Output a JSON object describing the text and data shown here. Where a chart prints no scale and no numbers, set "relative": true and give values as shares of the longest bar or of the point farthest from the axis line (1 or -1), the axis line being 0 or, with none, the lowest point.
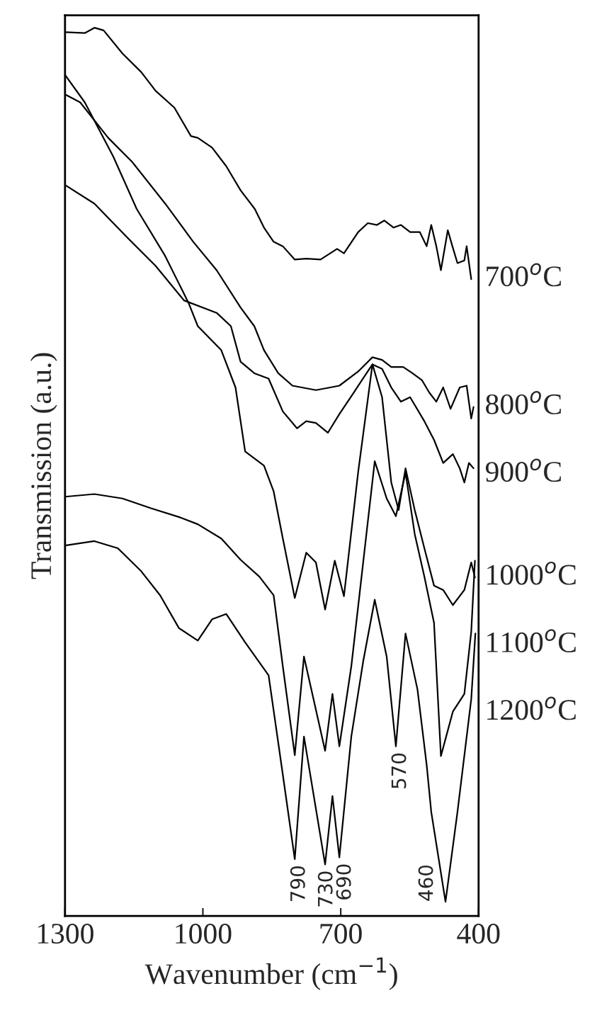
{
  "chart_data": {
    "type": "line",
    "relative": true,
    "xlabel": "Wavenumber (cm$^{−1}$)",
    "ylabel": "Transmission (a.u.)",
    "xlim": [
      1300,
      400
    ],
    "xticks": [
      1300,
      1000,
      700,
      400
    ],
    "tick_labels": "x",
    "grid": false,
    "legend": false,
    "marker": "none",
    "line_style": "solid",
    "series": [
      {
        "name": "700$^{o}$C",
        "color": "#000000",
        "x": [
          1300,
          1257,
          1236,
          1216,
          1175,
          1134,
          1103,
          1062,
          1026,
          1011,
          980,
          949,
          918,
          887,
          867,
          846,
          826,
          800,
          775,
          744,
          723,
          708,
          693,
          662,
          641,
          621,
          605,
          585,
          569,
          549,
          528,
          513,
          503,
          492,
          482,
          467,
          457,
          446,
          431,
          426,
          416
        ],
        "values": [
          0.995,
          0.994,
          1,
          0.997,
          0.971,
          0.95,
          0.929,
          0.91,
          0.878,
          0.876,
          0.865,
          0.844,
          0.817,
          0.796,
          0.775,
          0.759,
          0.754,
          0.739,
          0.74,
          0.739,
          0.746,
          0.751,
          0.746,
          0.77,
          0.78,
          0.778,
          0.783,
          0.775,
          0.778,
          0.77,
          0.77,
          0.754,
          0.778,
          0.754,
          0.727,
          0.772,
          0.754,
          0.735,
          0.738,
          0.754,
          0.717
        ]
      },
      {
        "name": "800$^{o}$C",
        "color": "#000000",
        "x": [
          1300,
          1267,
          1206,
          1154,
          1082,
          1021,
          970,
          918,
          888,
          867,
          836,
          805,
          754,
          723,
          703,
          662,
          631,
          610,
          590,
          564,
          544,
          523,
          507,
          492,
          477,
          461,
          441,
          426,
          416,
          411
        ],
        "values": [
          0.925,
          0.916,
          0.876,
          0.849,
          0.802,
          0.759,
          0.727,
          0.685,
          0.664,
          0.637,
          0.611,
          0.597,
          0.592,
          0.595,
          0.597,
          0.613,
          0.629,
          0.626,
          0.618,
          0.618,
          0.611,
          0.603,
          0.589,
          0.579,
          0.595,
          0.571,
          0.595,
          0.597,
          0.56,
          0.573
        ]
      },
      {
        "name": "900$^{o}$C",
        "color": "#000000",
        "x": [
          1300,
          1236,
          1165,
          1103,
          1041,
          970,
          939,
          918,
          888,
          857,
          826,
          795,
          775,
          754,
          728,
          703,
          672,
          631,
          610,
          590,
          569,
          549,
          518,
          497,
          477,
          456,
          441,
          431,
          421,
          411
        ],
        "values": [
          0.823,
          0.802,
          0.764,
          0.732,
          0.693,
          0.679,
          0.664,
          0.624,
          0.611,
          0.605,
          0.568,
          0.549,
          0.557,
          0.555,
          0.544,
          0.565,
          0.589,
          0.621,
          0.616,
          0.595,
          0.579,
          0.584,
          0.557,
          0.536,
          0.51,
          0.52,
          0.504,
          0.488,
          0.51,
          0.504
        ]
      },
      {
        "name": "1000$^{o}$C",
        "color": "#000000",
        "x": [
          1300,
          1257,
          1195,
          1144,
          1082,
          1031,
          1011,
          960,
          929,
          908,
          867,
          846,
          826,
          800,
          775,
          754,
          734,
          713,
          693,
          662,
          631,
          610,
          590,
          574,
          559,
          539,
          518,
          497,
          477,
          456,
          431,
          416,
          408
        ],
        "values": [
          0.947,
          0.916,
          0.855,
          0.796,
          0.743,
          0.69,
          0.664,
          0.637,
          0.595,
          0.523,
          0.507,
          0.478,
          0.425,
          0.358,
          0.409,
          0.398,
          0.345,
          0.4,
          0.36,
          0.5,
          0.621,
          0.584,
          0.488,
          0.457,
          0.504,
          0.457,
          0.414,
          0.372,
          0.367,
          0.35,
          0.367,
          0.398,
          0.381
        ]
      },
      {
        "name": "1100$^{o}$C",
        "color": "#000000",
        "x": [
          1300,
          1236,
          1175,
          1113,
          1051,
          1011,
          960,
          918,
          877,
          846,
          826,
          800,
          780,
          734,
          718,
          703,
          677,
          626,
          600,
          580,
          559,
          539,
          518,
          497,
          482,
          456,
          431,
          416,
          408
        ],
        "values": [
          0.472,
          0.475,
          0.47,
          0.459,
          0.449,
          0.441,
          0.425,
          0.401,
          0.382,
          0.361,
          0.281,
          0.181,
          0.292,
          0.186,
          0.25,
          0.191,
          0.281,
          0.512,
          0.47,
          0.45,
          0.499,
          0.43,
          0.382,
          0.33,
          0.18,
          0.23,
          0.25,
          0.32,
          0.4
        ]
      },
      {
        "name": "1200$^{o}$C",
        "color": "#000000",
        "x": [
          1300,
          1236,
          1185,
          1134,
          1093,
          1052,
          1011,
          980,
          949,
          908,
          857,
          826,
          800,
          780,
          734,
          718,
          703,
          677,
          651,
          626,
          600,
          580,
          559,
          533,
          513,
          503,
          472,
          446,
          416,
          407
        ],
        "values": [
          0.417,
          0.422,
          0.414,
          0.388,
          0.361,
          0.324,
          0.31,
          0.334,
          0.34,
          0.308,
          0.271,
          0.159,
          0.064,
          0.202,
          0.058,
          0.135,
          0.066,
          0.202,
          0.287,
          0.356,
          0.292,
          0.191,
          0.318,
          0.255,
          0.17,
          0.117,
          0.016,
          0.117,
          0.244,
          0.318
        ]
      }
    ],
    "annotations": [
      {
        "text": "790",
        "x": 790,
        "y": 0.064
      },
      {
        "text": "730",
        "x": 730,
        "y": 0.058
      },
      {
        "text": "690",
        "x": 690,
        "y": 0.066
      },
      {
        "text": "570",
        "x": 570,
        "y": 0.191
      },
      {
        "text": "460",
        "x": 460,
        "y": 0.016
      }
    ]
  }
}
